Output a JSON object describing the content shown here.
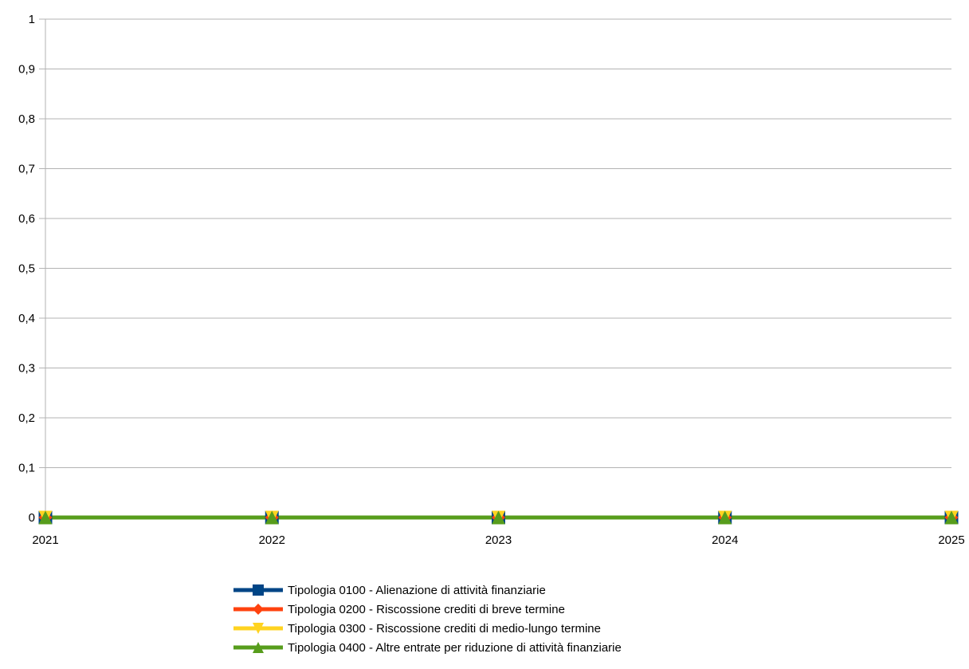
{
  "chart_data": {
    "type": "line",
    "title": "",
    "xlabel": "",
    "ylabel": "",
    "categories": [
      "2021",
      "2022",
      "2023",
      "2024",
      "2025"
    ],
    "y_ticks": [
      "0",
      "0,1",
      "0,2",
      "0,3",
      "0,4",
      "0,5",
      "0,6",
      "0,7",
      "0,8",
      "0,9",
      "1"
    ],
    "ylim": [
      0,
      1
    ],
    "grid": true,
    "legend_position": "bottom",
    "series": [
      {
        "name": "Tipologia 0100 - Alienazione di attività finanziarie",
        "values": [
          0,
          0,
          0,
          0,
          0
        ],
        "color": "#004586",
        "marker": "square"
      },
      {
        "name": "Tipologia 0200 - Riscossione crediti di breve termine",
        "values": [
          0,
          0,
          0,
          0,
          0
        ],
        "color": "#ff420e",
        "marker": "diamond"
      },
      {
        "name": "Tipologia 0300 - Riscossione crediti di medio-lungo termine",
        "values": [
          0,
          0,
          0,
          0,
          0
        ],
        "color": "#ffd320",
        "marker": "triangle-down"
      },
      {
        "name": "Tipologia 0400 - Altre entrate per riduzione di attività finanziarie",
        "values": [
          0,
          0,
          0,
          0,
          0
        ],
        "color": "#579d1c",
        "marker": "triangle-up"
      }
    ]
  }
}
